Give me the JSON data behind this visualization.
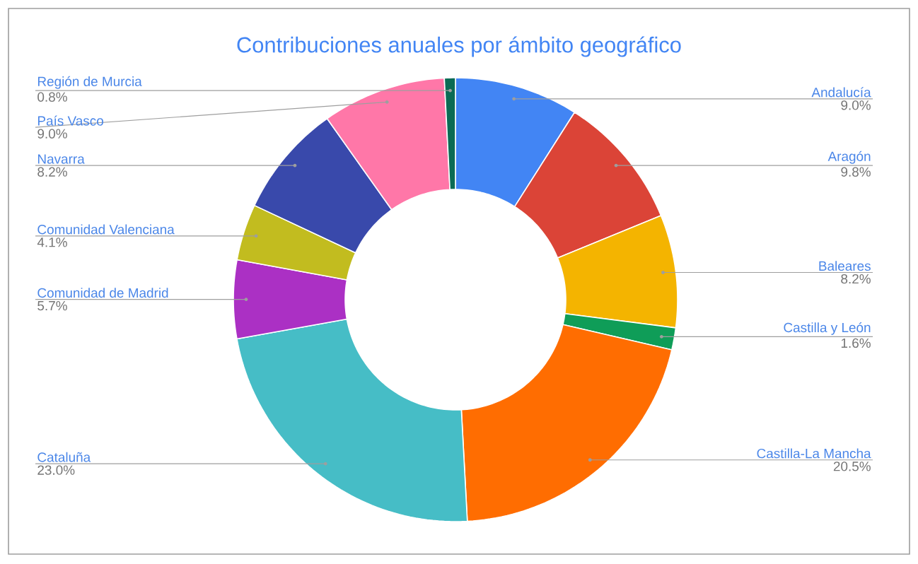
{
  "chart_data": {
    "type": "donut",
    "title": "Contribuciones anuales por ámbito geográfico",
    "categories": [
      "Andalucía",
      "Aragón",
      "Baleares",
      "Castilla y León",
      "Castilla-La Mancha",
      "Cataluña",
      "Comunidad de Madrid",
      "Comunidad Valenciana",
      "Navarra",
      "País Vasco",
      "Región de Murcia"
    ],
    "values": [
      9.0,
      9.8,
      8.2,
      1.6,
      20.5,
      23.0,
      5.7,
      4.1,
      8.2,
      9.0,
      0.8
    ],
    "value_labels": [
      "9.0%",
      "9.8%",
      "8.2%",
      "1.6%",
      "20.5%",
      "23.0%",
      "5.7%",
      "4.1%",
      "8.2%",
      "9.0%",
      "0.8%"
    ],
    "colors": [
      "#4285f4",
      "#db4437",
      "#f4b400",
      "#0f9d58",
      "#ff6d01",
      "#46bdc6",
      "#ab30c4",
      "#c2bc1f",
      "#3949ab",
      "#ff77a8",
      "#0b6b55"
    ]
  }
}
